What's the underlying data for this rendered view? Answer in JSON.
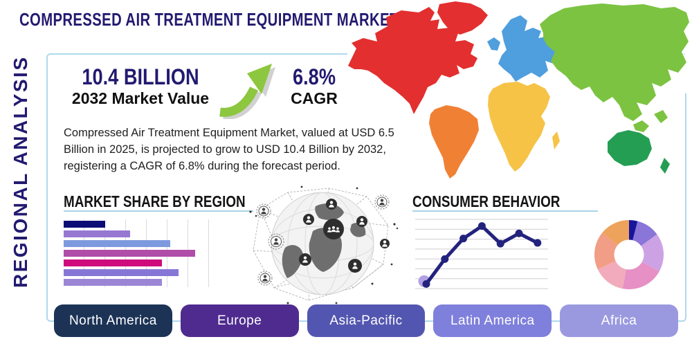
{
  "header": {
    "title": "COMPRESSED AIR TREATMENT EQUIPMENT MARKET"
  },
  "sidebar": {
    "label": "REGIONAL ANALYSIS"
  },
  "stats": {
    "market_value": "10.4 BILLION",
    "market_value_caption": "2032 Market Value",
    "cagr": "6.8%",
    "cagr_caption": "CAGR"
  },
  "description": "Compressed Air Treatment Equipment Market, valued at USD 6.5 Billion in 2025, is projected to grow to USD 10.4 Billion by 2032, registering a CAGR of 6.8% during the forecast period.",
  "sections": {
    "market_share_title": "MARKET SHARE BY REGION",
    "consumer_behavior_title": "CONSUMER BEHAVIOR"
  },
  "region_buttons": [
    {
      "label": "North America",
      "color": "#1c3356"
    },
    {
      "label": "Europe",
      "color": "#4f2b8f"
    },
    {
      "label": "Asia-Pacific",
      "color": "#5356b0"
    },
    {
      "label": "Latin America",
      "color": "#7f7fdc"
    },
    {
      "label": "Africa",
      "color": "#9a99e0"
    }
  ],
  "chart_data": [
    {
      "type": "bar",
      "title": "MARKET SHARE BY REGION",
      "orientation": "horizontal",
      "axis_labels": "none",
      "xlim": [
        0,
        7
      ],
      "grid": true,
      "values": [
        2.0,
        3.2,
        5.1,
        6.3,
        4.7,
        5.5,
        4.7
      ],
      "colors": [
        "#0d0d77",
        "#9678d2",
        "#7e9ade",
        "#b04da8",
        "#cf0b7c",
        "#8677d6",
        "#9b86d6"
      ]
    },
    {
      "type": "line",
      "title": "CONSUMER BEHAVIOR",
      "axis_labels": "none",
      "ylim": [
        0,
        100
      ],
      "grid": true,
      "grid_lines": 8,
      "values": [
        10,
        44,
        72,
        89,
        65,
        79,
        66
      ],
      "color": "#23237e",
      "first_point_halo_color": "#b2a1e3"
    },
    {
      "type": "pie",
      "subtype": "donut",
      "title": "",
      "labels": "none",
      "values": [
        4,
        11,
        18,
        20,
        15,
        18,
        14
      ],
      "colors": [
        "#16169b",
        "#8a75d8",
        "#cda2e5",
        "#e690c5",
        "#f2abbc",
        "#f29d85",
        "#eda35b"
      ]
    }
  ],
  "map": {
    "north_america": "#e32f2f",
    "greenland": "#e32f2f",
    "south_america": "#f08134",
    "europe": "#4f9ede",
    "africa": "#f6c347",
    "asia": "#7cc342",
    "australia": "#249e53"
  },
  "colors": {
    "title_navy": "#221a70",
    "panel_border": "#aed9ec",
    "section_underline": "#a9d4e6",
    "growth_arrow_green": "#8dc63f"
  }
}
